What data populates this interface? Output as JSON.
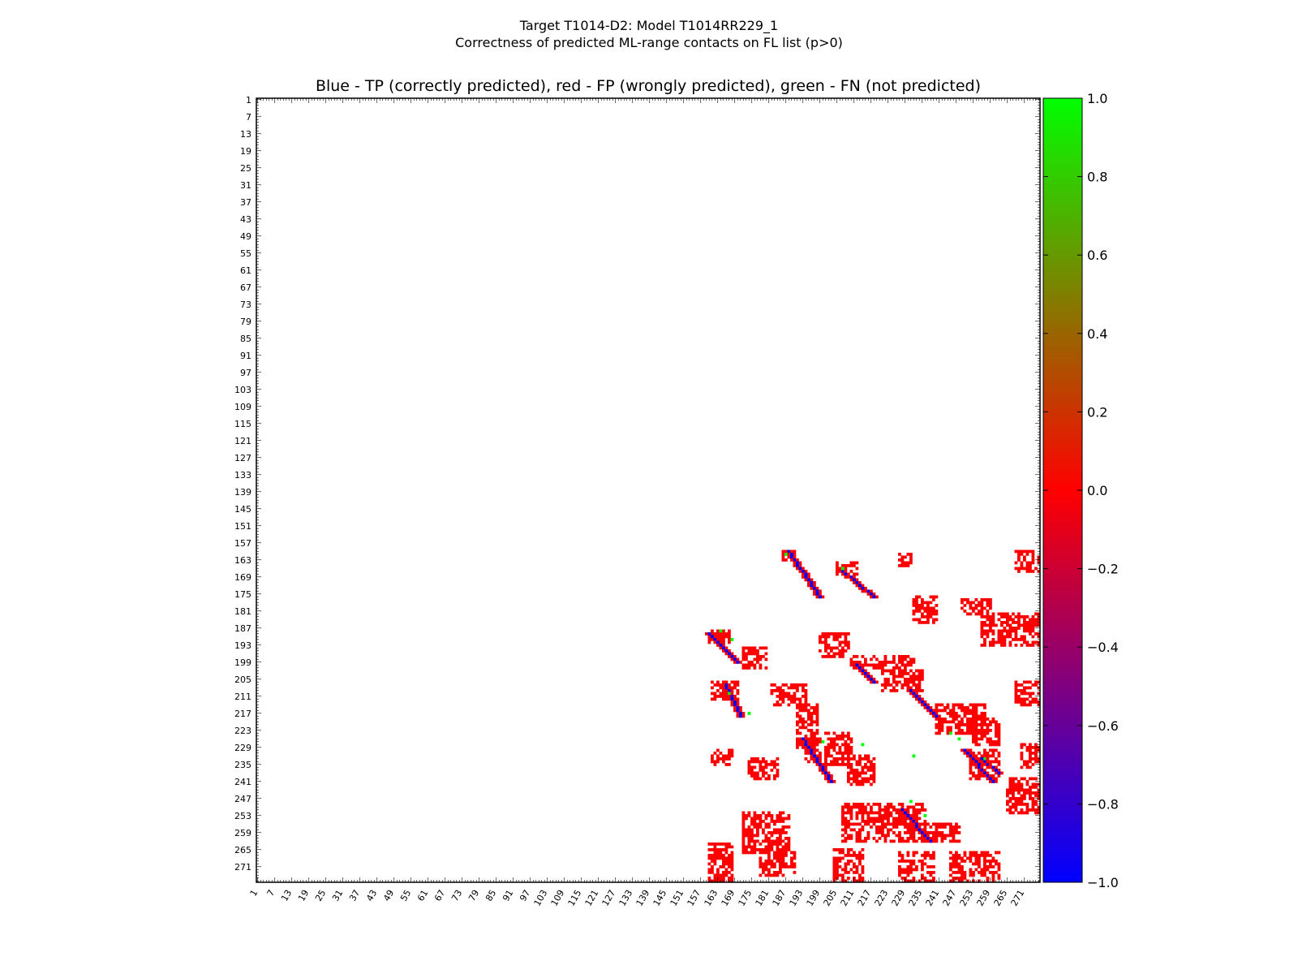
{
  "figure": {
    "title_line1": "Target T1014-D2: Model T1014RR229_1",
    "title_line2": "Correctness of predicted ML-range contacts on FL list (p>0)"
  },
  "chart_data": {
    "type": "heatmap",
    "title": "Blue - TP (correctly predicted), red - FP (wrongly predicted), green - FN (not predicted)",
    "xlabel": "",
    "ylabel": "",
    "x_range": [
      1,
      276
    ],
    "y_range": [
      1,
      276
    ],
    "y_inverted": true,
    "tick_labels": [
      1,
      7,
      13,
      19,
      25,
      31,
      37,
      43,
      49,
      55,
      61,
      67,
      73,
      79,
      85,
      91,
      97,
      103,
      109,
      115,
      121,
      127,
      133,
      139,
      145,
      151,
      157,
      163,
      169,
      175,
      181,
      187,
      193,
      199,
      205,
      211,
      217,
      223,
      229,
      235,
      241,
      247,
      253,
      259,
      265,
      271
    ],
    "colorbar": {
      "min": -1.0,
      "max": 1.0,
      "ticks": [
        "1.0",
        "0.8",
        "0.6",
        "0.4",
        "0.2",
        "0.0",
        "−0.2",
        "−0.4",
        "−0.6",
        "−0.8",
        "−1.0"
      ],
      "colors": [
        "#0000ff",
        "#ff0000",
        "#00ff00"
      ]
    },
    "legend": {
      "tp": {
        "value": -1,
        "color": "#0000ff"
      },
      "fp": {
        "value": 0,
        "color": "#ff0000"
      },
      "fn": {
        "value": 1,
        "color": "#00ff00"
      }
    },
    "tp_diagonals": [
      {
        "from": [
          188,
          160
        ],
        "to": [
          199,
          176
        ]
      },
      {
        "from": [
          207,
          167
        ],
        "to": [
          218,
          176
        ]
      },
      {
        "from": [
          160,
          189
        ],
        "to": [
          170,
          199
        ]
      },
      {
        "from": [
          166,
          207
        ],
        "to": [
          171,
          218
        ]
      },
      {
        "from": [
          231,
          209
        ],
        "to": [
          240,
          218
        ]
      },
      {
        "from": [
          193,
          226
        ],
        "to": [
          203,
          241
        ]
      },
      {
        "from": [
          228,
          251
        ],
        "to": [
          238,
          262
        ]
      },
      {
        "from": [
          250,
          230
        ],
        "to": [
          260,
          241
        ]
      },
      {
        "from": [
          256,
          233
        ],
        "to": [
          262,
          238
        ]
      },
      {
        "from": [
          212,
          200
        ],
        "to": [
          218,
          206
        ]
      }
    ],
    "fp_blocks": [
      {
        "x": [
          186,
          190
        ],
        "y": [
          160,
          163
        ]
      },
      {
        "x": [
          205,
          212
        ],
        "y": [
          164,
          168
        ]
      },
      {
        "x": [
          227,
          231
        ],
        "y": [
          161,
          165
        ]
      },
      {
        "x": [
          268,
          276
        ],
        "y": [
          160,
          167
        ]
      },
      {
        "x": [
          232,
          240
        ],
        "y": [
          176,
          185
        ]
      },
      {
        "x": [
          249,
          259
        ],
        "y": [
          177,
          182
        ]
      },
      {
        "x": [
          256,
          276
        ],
        "y": [
          182,
          193
        ]
      },
      {
        "x": [
          160,
          167
        ],
        "y": [
          188,
          192
        ]
      },
      {
        "x": [
          199,
          209
        ],
        "y": [
          189,
          197
        ]
      },
      {
        "x": [
          210,
          232
        ],
        "y": [
          197,
          201
        ]
      },
      {
        "x": [
          221,
          235
        ],
        "y": [
          202,
          209
        ]
      },
      {
        "x": [
          172,
          180
        ],
        "y": [
          194,
          201
        ]
      },
      {
        "x": [
          182,
          194
        ],
        "y": [
          207,
          214
        ]
      },
      {
        "x": [
          161,
          170
        ],
        "y": [
          206,
          212
        ]
      },
      {
        "x": [
          191,
          198
        ],
        "y": [
          214,
          229
        ]
      },
      {
        "x": [
          240,
          257
        ],
        "y": [
          214,
          224
        ]
      },
      {
        "x": [
          253,
          262
        ],
        "y": [
          219,
          228
        ]
      },
      {
        "x": [
          268,
          276
        ],
        "y": [
          206,
          214
        ]
      },
      {
        "x": [
          194,
          210
        ],
        "y": [
          224,
          235
        ]
      },
      {
        "x": [
          209,
          218
        ],
        "y": [
          232,
          242
        ]
      },
      {
        "x": [
          161,
          168
        ],
        "y": [
          230,
          235
        ]
      },
      {
        "x": [
          174,
          184
        ],
        "y": [
          233,
          240
        ]
      },
      {
        "x": [
          252,
          262
        ],
        "y": [
          230,
          240
        ]
      },
      {
        "x": [
          270,
          276
        ],
        "y": [
          228,
          236
        ]
      },
      {
        "x": [
          265,
          276
        ],
        "y": [
          240,
          252
        ]
      },
      {
        "x": [
          207,
          236
        ],
        "y": [
          249,
          262
        ]
      },
      {
        "x": [
          172,
          188
        ],
        "y": [
          252,
          266
        ]
      },
      {
        "x": [
          178,
          190
        ],
        "y": [
          265,
          274
        ]
      },
      {
        "x": [
          160,
          168
        ],
        "y": [
          263,
          276
        ]
      },
      {
        "x": [
          204,
          214
        ],
        "y": [
          265,
          276
        ]
      },
      {
        "x": [
          227,
          239
        ],
        "y": [
          266,
          276
        ]
      },
      {
        "x": [
          245,
          262
        ],
        "y": [
          266,
          276
        ]
      },
      {
        "x": [
          236,
          248
        ],
        "y": [
          256,
          262
        ]
      }
    ],
    "fn_points": [
      [
        164,
        188
      ],
      [
        174,
        217
      ],
      [
        167,
        210
      ],
      [
        187,
        161
      ],
      [
        207,
        166
      ],
      [
        236,
        253
      ],
      [
        214,
        228
      ],
      [
        231,
        248
      ],
      [
        248,
        226
      ],
      [
        245,
        224
      ],
      [
        257,
        233
      ],
      [
        200,
        227
      ],
      [
        232,
        232
      ],
      [
        168,
        191
      ]
    ]
  }
}
